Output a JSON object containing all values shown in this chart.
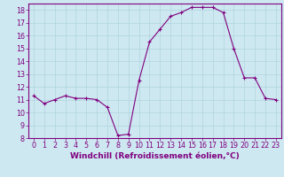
{
  "x": [
    0,
    1,
    2,
    3,
    4,
    5,
    6,
    7,
    8,
    9,
    10,
    11,
    12,
    13,
    14,
    15,
    16,
    17,
    18,
    19,
    20,
    21,
    22,
    23
  ],
  "y": [
    11.3,
    10.7,
    11.0,
    11.3,
    11.1,
    11.1,
    11.0,
    10.4,
    8.2,
    8.3,
    12.5,
    15.5,
    16.5,
    17.5,
    17.8,
    18.2,
    18.2,
    18.2,
    17.8,
    15.0,
    12.7,
    12.7,
    11.1,
    11.0
  ],
  "line_color": "#800080",
  "marker": "+",
  "marker_size": 3,
  "linewidth": 0.8,
  "bg_color": "#cde8f0",
  "grid_color": "#b0d4e0",
  "xlabel": "Windchill (Refroidissement éolien,°C)",
  "xlim": [
    -0.5,
    23.5
  ],
  "ylim": [
    8,
    18.5
  ],
  "yticks": [
    8,
    9,
    10,
    11,
    12,
    13,
    14,
    15,
    16,
    17,
    18
  ],
  "xticks": [
    0,
    1,
    2,
    3,
    4,
    5,
    6,
    7,
    8,
    9,
    10,
    11,
    12,
    13,
    14,
    15,
    16,
    17,
    18,
    19,
    20,
    21,
    22,
    23
  ],
  "tick_label_color": "#800080",
  "axis_color": "#800080",
  "xlabel_fontsize": 6.5,
  "tick_fontsize": 5.8,
  "spine_color": "#800080"
}
